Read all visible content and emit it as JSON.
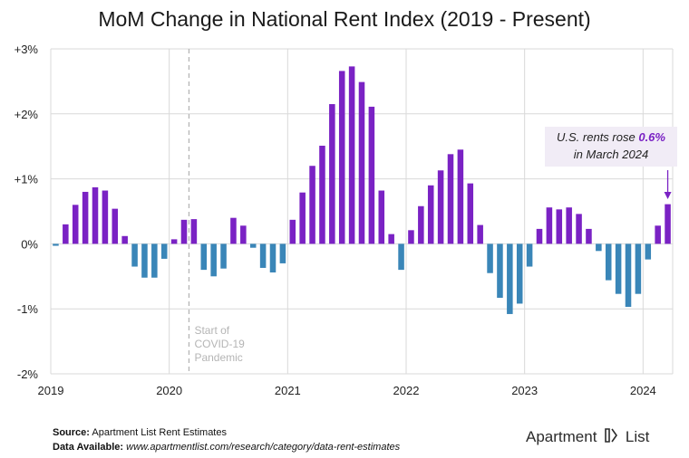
{
  "title": "MoM Change in National Rent Index (2019 - Present)",
  "colors": {
    "positive": "#7a22c4",
    "negative": "#3a86b8",
    "grid": "#d9d9d9",
    "covid_line": "#b5b5b5"
  },
  "annotation": {
    "pre": "U.S. rents rose",
    "value": "0.6%",
    "post": "in March 2024"
  },
  "covid_label": [
    "Start of",
    "COVID-19",
    "Pandemic"
  ],
  "footer": {
    "source_label": "Source:",
    "source_text": "Apartment List Rent Estimates",
    "available_label": "Data Available:",
    "available_text": "www.apartmentlist.com/research/category/data-rent-estimates"
  },
  "logo": {
    "word1": "Apartment",
    "word2": "List"
  },
  "chart_data": {
    "type": "bar",
    "title": "MoM Change in National Rent Index (2019 - Present)",
    "ylim": [
      -2,
      3
    ],
    "y_ticks": [
      "+3%",
      "+2%",
      "+1%",
      "0%",
      "-1%",
      "-2%"
    ],
    "y_tick_values": [
      3,
      2,
      1,
      0,
      -1,
      -2
    ],
    "x_ticks": [
      "2019",
      "2020",
      "2021",
      "2022",
      "2023",
      "2024"
    ],
    "start": "2019-01",
    "grid": true,
    "covid_marker": "2020-03",
    "values": [
      -0.03,
      0.3,
      0.6,
      0.8,
      0.87,
      0.82,
      0.54,
      0.12,
      -0.35,
      -0.52,
      -0.52,
      -0.23,
      0.07,
      0.37,
      0.38,
      -0.4,
      -0.5,
      -0.38,
      0.4,
      0.28,
      -0.06,
      -0.37,
      -0.44,
      -0.3,
      0.37,
      0.79,
      1.2,
      1.51,
      2.15,
      2.66,
      2.73,
      2.49,
      2.11,
      0.82,
      0.15,
      -0.4,
      0.21,
      0.58,
      0.9,
      1.13,
      1.38,
      1.45,
      0.93,
      0.29,
      -0.45,
      -0.83,
      -1.08,
      -0.92,
      -0.35,
      0.23,
      0.56,
      0.53,
      0.56,
      0.46,
      0.23,
      -0.11,
      -0.56,
      -0.77,
      -0.97,
      -0.77,
      -0.24,
      0.28,
      0.61
    ]
  }
}
